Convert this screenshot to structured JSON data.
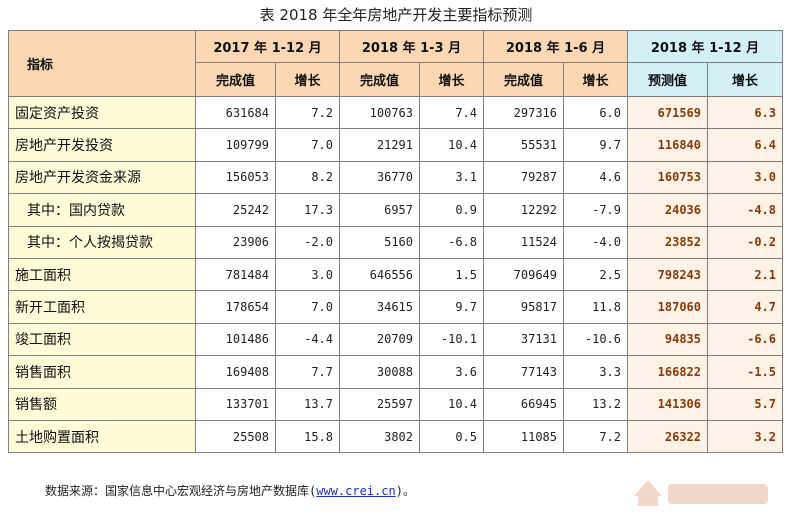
{
  "title": "表  2018 年全年房地产开发主要指标预测",
  "header": {
    "indicator": "指标",
    "periods": [
      "2017 年 1-12 月",
      "2018 年 1-3 月",
      "2018 年 1-6 月",
      "2018 年 1-12 月"
    ],
    "sub": {
      "value": "完成值",
      "growth": "增长",
      "forecast": "预测值"
    }
  },
  "rows": [
    {
      "label": "固定资产投资",
      "sub": false,
      "cells": [
        "631684",
        "7.2",
        "100763",
        "7.4",
        "297316",
        "6.0",
        "671569",
        "6.3"
      ]
    },
    {
      "label": "房地产开发投资",
      "sub": false,
      "cells": [
        "109799",
        "7.0",
        "21291",
        "10.4",
        "55531",
        "9.7",
        "116840",
        "6.4"
      ]
    },
    {
      "label": "房地产开发资金来源",
      "sub": false,
      "cells": [
        "156053",
        "8.2",
        "36770",
        "3.1",
        "79287",
        "4.6",
        "160753",
        "3.0"
      ]
    },
    {
      "label": "其中：国内贷款",
      "sub": true,
      "cells": [
        "25242",
        "17.3",
        "6957",
        "0.9",
        "12292",
        "-7.9",
        "24036",
        "-4.8"
      ]
    },
    {
      "label": "其中：个人按揭贷款",
      "sub": true,
      "cells": [
        "23906",
        "-2.0",
        "5160",
        "-6.8",
        "11524",
        "-4.0",
        "23852",
        "-0.2"
      ]
    },
    {
      "label": "施工面积",
      "sub": false,
      "cells": [
        "781484",
        "3.0",
        "646556",
        "1.5",
        "709649",
        "2.5",
        "798243",
        "2.1"
      ]
    },
    {
      "label": "新开工面积",
      "sub": false,
      "cells": [
        "178654",
        "7.0",
        "34615",
        "9.7",
        "95817",
        "11.8",
        "187060",
        "4.7"
      ]
    },
    {
      "label": "竣工面积",
      "sub": false,
      "cells": [
        "101486",
        "-4.4",
        "20709",
        "-10.1",
        "37131",
        "-10.6",
        "94835",
        "-6.6"
      ]
    },
    {
      "label": "销售面积",
      "sub": false,
      "cells": [
        "169408",
        "7.7",
        "30088",
        "3.6",
        "77143",
        "3.3",
        "166822",
        "-1.5"
      ]
    },
    {
      "label": "销售额",
      "sub": false,
      "cells": [
        "133701",
        "13.7",
        "25597",
        "10.4",
        "66945",
        "13.2",
        "141306",
        "5.7"
      ]
    },
    {
      "label": "土地购置面积",
      "sub": false,
      "cells": [
        "25508",
        "15.8",
        "3802",
        "0.5",
        "11085",
        "7.2",
        "26322",
        "3.2"
      ]
    }
  ],
  "source": {
    "prefix": "数据来源：国家信息中心宏观经济与房地产数据库(",
    "link": "www.crei.cn",
    "suffix": ")。"
  },
  "watermark": {
    "icon": "house-logo",
    "colors": {
      "logo": "#e9b79a"
    }
  },
  "colors": {
    "header_past": "#fbd7b4",
    "header_forecast": "#d3f0f7",
    "label_bg": "#fdfbd8",
    "forecast_text": "#8a3a08",
    "link": "#1a33b8"
  }
}
